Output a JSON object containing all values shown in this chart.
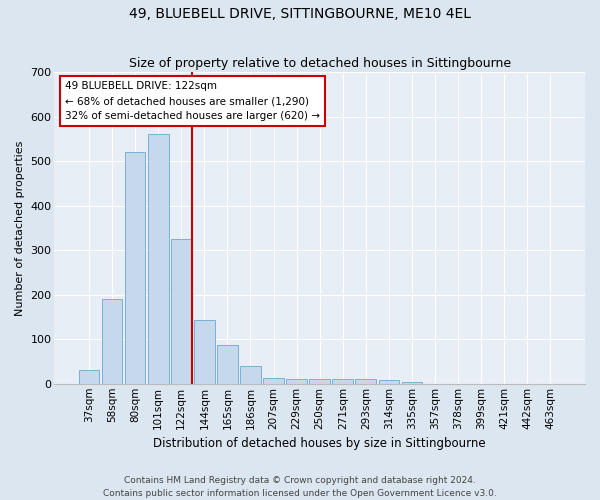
{
  "title1": "49, BLUEBELL DRIVE, SITTINGBOURNE, ME10 4EL",
  "title2": "Size of property relative to detached houses in Sittingbourne",
  "xlabel": "Distribution of detached houses by size in Sittingbourne",
  "ylabel": "Number of detached properties",
  "categories": [
    "37sqm",
    "58sqm",
    "80sqm",
    "101sqm",
    "122sqm",
    "144sqm",
    "165sqm",
    "186sqm",
    "207sqm",
    "229sqm",
    "250sqm",
    "271sqm",
    "293sqm",
    "314sqm",
    "335sqm",
    "357sqm",
    "378sqm",
    "399sqm",
    "421sqm",
    "442sqm",
    "463sqm"
  ],
  "values": [
    30,
    190,
    520,
    560,
    325,
    143,
    87,
    40,
    13,
    10,
    10,
    10,
    10,
    8,
    5,
    0,
    0,
    0,
    0,
    0,
    0
  ],
  "bar_color": "#c5d8ec",
  "bar_edgecolor": "#7aafd4",
  "vline_color": "#cc0000",
  "vline_index": 4,
  "annotation_line1": "49 BLUEBELL DRIVE: 122sqm",
  "annotation_line2": "← 68% of detached houses are smaller (1,290)",
  "annotation_line3": "32% of semi-detached houses are larger (620) →",
  "ylim": [
    0,
    700
  ],
  "yticks": [
    0,
    100,
    200,
    300,
    400,
    500,
    600,
    700
  ],
  "footer": "Contains HM Land Registry data © Crown copyright and database right 2024.\nContains public sector information licensed under the Open Government Licence v3.0.",
  "bg_color": "#dce6f0",
  "plot_bg_color": "#e8eef6",
  "grid_color": "#ffffff",
  "title1_fontsize": 10,
  "title2_fontsize": 9,
  "xlabel_fontsize": 8.5,
  "ylabel_fontsize": 8,
  "tick_fontsize": 7.5,
  "annotation_fontsize": 7.5,
  "footer_fontsize": 6.5
}
